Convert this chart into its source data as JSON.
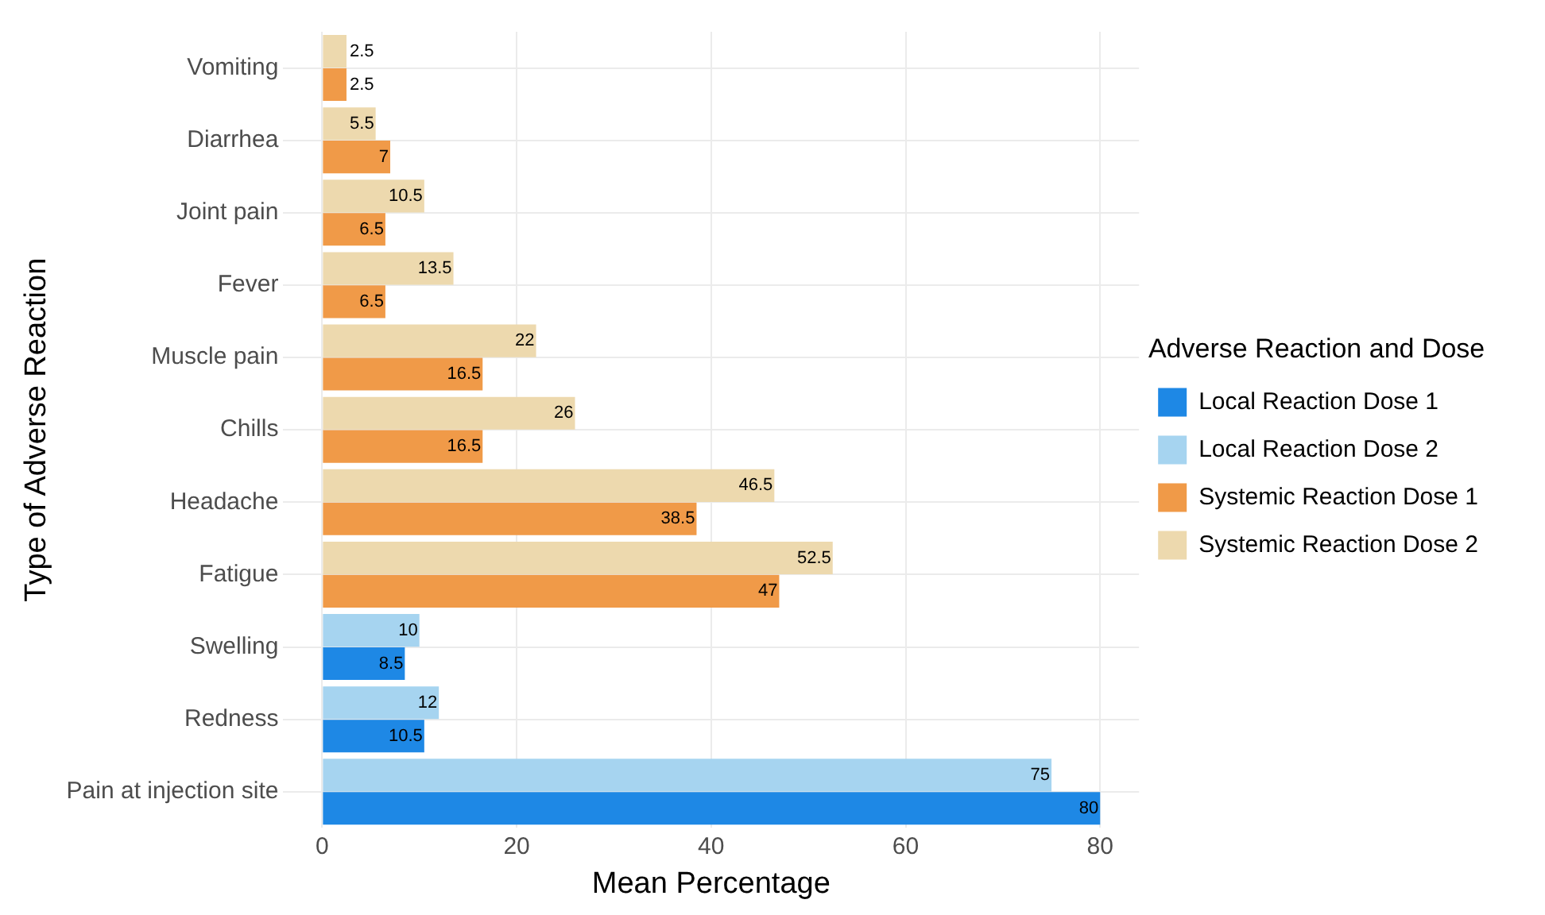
{
  "chart_data": {
    "type": "bar",
    "orientation": "horizontal",
    "xlabel": "Mean Percentage",
    "ylabel": "Type of Adverse Reaction",
    "legend_title": "Adverse Reaction and Dose",
    "categories": [
      "Vomiting",
      "Diarrhea",
      "Joint pain",
      "Fever",
      "Muscle pain",
      "Chills",
      "Headache",
      "Fatigue",
      "Swelling",
      "Redness",
      "Pain at injection site"
    ],
    "series": [
      {
        "name": "Local Reaction Dose 1",
        "color": "#1e88e5",
        "values": [
          null,
          null,
          null,
          null,
          null,
          null,
          null,
          null,
          8.5,
          10.5,
          80
        ]
      },
      {
        "name": "Local Reaction Dose 2",
        "color": "#a6d4f0",
        "values": [
          null,
          null,
          null,
          null,
          null,
          null,
          null,
          null,
          10,
          12,
          75
        ]
      },
      {
        "name": "Systemic Reaction Dose 1",
        "color": "#f09a48",
        "values": [
          2.5,
          7,
          6.5,
          6.5,
          16.5,
          16.5,
          38.5,
          47,
          null,
          null,
          null
        ]
      },
      {
        "name": "Systemic Reaction Dose 2",
        "color": "#edd9ae",
        "values": [
          2.5,
          5.5,
          10.5,
          13.5,
          22,
          26,
          46.5,
          52.5,
          null,
          null,
          null
        ]
      }
    ],
    "xlim": [
      -4,
      84
    ],
    "xticks": [
      0,
      20,
      40,
      60,
      80
    ],
    "grid": true,
    "legend": "right",
    "data_labels": true
  }
}
